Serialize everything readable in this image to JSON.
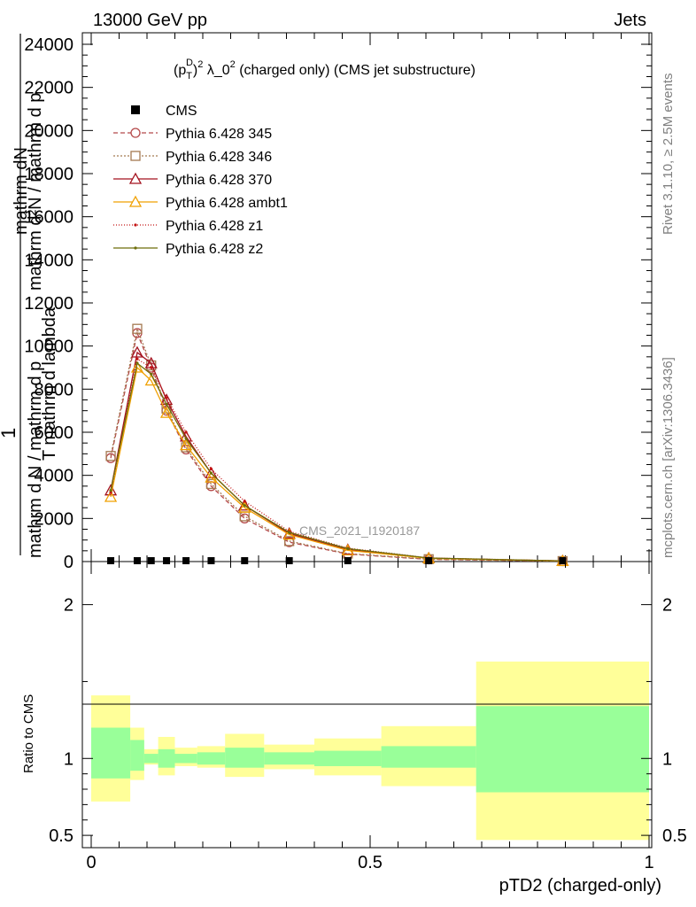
{
  "header": {
    "left": "13000 GeV pp",
    "right": "Jets"
  },
  "side_text": {
    "top": "Rivet 3.1.10, ≥ 2.5M events",
    "bottom": "mcplots.cern.ch [arXiv:1306.3436]"
  },
  "watermark": "CMS_2021_I1920187",
  "chart_data": {
    "type": "line",
    "title": "(p_T^D)^2 λ_0^2 (charged only) (CMS jet substructure)",
    "title_parts": {
      "a": "(p",
      "sub": "T",
      "sup1": "D",
      "b": ")",
      "sup2": "2",
      "c": " λ_0",
      "sup3": "2",
      "d": " (charged only) (CMS jet substructure)"
    },
    "xlabel": "pTD2 (charged-only)",
    "ylabel_main": "1 / mathrm d N / mathrm d p_T mathrm d lambda  mathrm d^2N / mathrm d p_T mathrm d lambda",
    "ylabel_lines": {
      "l1": "mathrm dN",
      "l2": "mathrm d p",
      "l3": "T mathrm d lambda",
      "l4": "mathrm d²N / mathrm d p",
      "l5": "1",
      "l6": "mathrm d N / mathrm d p",
      "l7": "T mathrm d lambda",
      "l8": "mathrm d N"
    },
    "ratio_ylabel": "Ratio to CMS",
    "xlim": [
      0,
      1
    ],
    "ylim": [
      0,
      24000
    ],
    "ratio_ylim": [
      0.42,
      2.28
    ],
    "x_ticks": [
      0,
      0.5,
      1
    ],
    "x_tick_labels": [
      "0",
      "0.5",
      "1"
    ],
    "y_ticks": [
      0,
      2000,
      4000,
      6000,
      8000,
      10000,
      12000,
      14000,
      16000,
      18000,
      20000,
      22000,
      24000
    ],
    "y_tick_labels": [
      "0",
      "2000",
      "4000",
      "6000",
      "8000",
      "10000",
      "12000",
      "14000",
      "16000",
      "18000",
      "20000",
      "22000",
      "24000"
    ],
    "ratio_ticks": [
      0.5,
      1,
      2
    ],
    "ratio_tick_labels": [
      "0.5",
      "1",
      "2"
    ],
    "bin_edges": [
      0,
      0.07,
      0.095,
      0.12,
      0.15,
      0.19,
      0.24,
      0.31,
      0.4,
      0.52,
      0.69,
      1.0
    ],
    "x": [
      0.035,
      0.0825,
      0.1075,
      0.135,
      0.17,
      0.215,
      0.275,
      0.355,
      0.46,
      0.605,
      0.845
    ],
    "cms": {
      "name": "CMS",
      "values": [
        40,
        40,
        40,
        40,
        40,
        40,
        40,
        40,
        40,
        40,
        40
      ],
      "band_inner": [
        [
          0.87,
          1.2
        ],
        [
          0.92,
          1.12
        ],
        [
          0.97,
          1.03
        ],
        [
          0.94,
          1.06
        ],
        [
          0.97,
          1.03
        ],
        [
          0.96,
          1.04
        ],
        [
          0.94,
          1.07
        ],
        [
          0.96,
          1.04
        ],
        [
          0.95,
          1.05
        ],
        [
          0.94,
          1.08
        ],
        [
          0.78,
          1.34
        ]
      ],
      "band_outer": [
        [
          0.72,
          1.41
        ],
        [
          0.86,
          1.2
        ],
        [
          0.96,
          1.06
        ],
        [
          0.89,
          1.14
        ],
        [
          0.95,
          1.07
        ],
        [
          0.94,
          1.08
        ],
        [
          0.88,
          1.16
        ],
        [
          0.93,
          1.09
        ],
        [
          0.89,
          1.13
        ],
        [
          0.82,
          1.21
        ],
        [
          0.47,
          1.63
        ]
      ]
    },
    "legend_placement": "top-left",
    "series": [
      {
        "name": "Pythia 6.428 345",
        "color": "#b5494a",
        "dash": "5,3",
        "marker": "circle",
        "values": [
          4800,
          10600,
          9000,
          7000,
          5200,
          3500,
          2000,
          900,
          350,
          100,
          20
        ]
      },
      {
        "name": "Pythia 6.428 346",
        "color": "#a57a52",
        "dash": "2,2",
        "marker": "square",
        "values": [
          4900,
          10800,
          9100,
          7100,
          5300,
          3600,
          2100,
          950,
          370,
          110,
          22
        ]
      },
      {
        "name": "Pythia 6.428 370",
        "color": "#a3111d",
        "dash": "",
        "marker": "triangle",
        "values": [
          3300,
          9700,
          9200,
          7500,
          5800,
          4100,
          2600,
          1300,
          550,
          160,
          30
        ]
      },
      {
        "name": "Pythia 6.428 ambt1",
        "color": "#f0a000",
        "dash": "",
        "marker": "triangle",
        "values": [
          3000,
          9000,
          8400,
          6900,
          5400,
          3900,
          2500,
          1250,
          520,
          150,
          28
        ]
      },
      {
        "name": "Pythia 6.428 z1",
        "color": "#c41414",
        "dash": "1,2",
        "marker": "dot",
        "values": [
          3200,
          9400,
          9000,
          7600,
          6000,
          4300,
          2800,
          1400,
          620,
          170,
          32
        ]
      },
      {
        "name": "Pythia 6.428 z2",
        "color": "#6e6e0a",
        "dash": "",
        "marker": "dot",
        "values": [
          3300,
          9200,
          8700,
          7300,
          5700,
          4100,
          2600,
          1350,
          600,
          165,
          30
        ]
      }
    ],
    "colors": {
      "band_inner": "#99ff99",
      "band_outer": "#ffff99",
      "cms_marker": "#000000"
    }
  }
}
